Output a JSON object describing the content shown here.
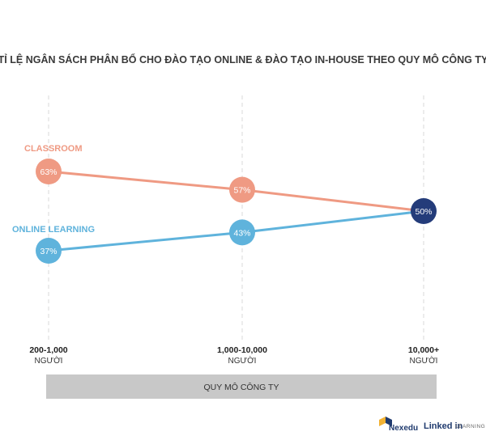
{
  "chart_data": {
    "type": "line",
    "title": "TỈ LỆ NGÂN SÁCH PHÂN BỔ CHO ĐÀO TẠO ONLINE & ĐÀO TẠO IN-HOUSE THEO QUY MÔ CÔNG TY",
    "categories": [
      {
        "label": "200-1,000",
        "sub": "NGƯỜI"
      },
      {
        "label": "1,000-10,000",
        "sub": "NGƯỜI"
      },
      {
        "label": "10,000+",
        "sub": "NGƯỜI"
      }
    ],
    "series": [
      {
        "name": "CLASSROOM",
        "values": [
          63,
          57,
          50
        ],
        "labels": [
          "63%",
          "57%",
          "50%"
        ],
        "color": "#ef9a83"
      },
      {
        "name": "ONLINE LEARNING",
        "values": [
          37,
          43,
          50
        ],
        "labels": [
          "37%",
          "43%",
          "50%"
        ],
        "color": "#5fb3dc"
      }
    ],
    "meeting_point_color": "#243c7a",
    "xlabel": "QUY MÔ CÔNG TY",
    "ylim": [
      0,
      100
    ],
    "grid": "vertical dashed"
  },
  "logos": {
    "nexedu": "Nexedu",
    "linkedin": "Linked in",
    "learning": "LEARNING"
  }
}
